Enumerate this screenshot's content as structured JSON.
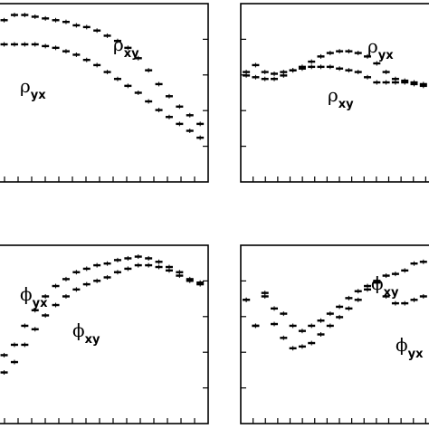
{
  "chart_data": [
    {
      "type": "scatter",
      "panel": "top-left",
      "ylim": [
        0,
        1
      ],
      "series": [
        {
          "name": "ρxy",
          "x": [
            0.02,
            0.07,
            0.12,
            0.17,
            0.22,
            0.27,
            0.32,
            0.37,
            0.42,
            0.47,
            0.52,
            0.57,
            0.62,
            0.67,
            0.72,
            0.77,
            0.82,
            0.87,
            0.92,
            0.97
          ],
          "y": [
            0.92,
            0.95,
            0.95,
            0.94,
            0.93,
            0.92,
            0.91,
            0.89,
            0.88,
            0.86,
            0.83,
            0.8,
            0.76,
            0.7,
            0.63,
            0.55,
            0.48,
            0.42,
            0.37,
            0.32
          ]
        },
        {
          "name": "ρyx",
          "x": [
            0.02,
            0.07,
            0.12,
            0.17,
            0.22,
            0.27,
            0.32,
            0.37,
            0.42,
            0.47,
            0.52,
            0.57,
            0.62,
            0.67,
            0.72,
            0.77,
            0.82,
            0.87,
            0.92,
            0.97
          ],
          "y": [
            0.78,
            0.78,
            0.78,
            0.78,
            0.77,
            0.76,
            0.74,
            0.72,
            0.69,
            0.66,
            0.62,
            0.58,
            0.54,
            0.5,
            0.45,
            0.4,
            0.36,
            0.32,
            0.28,
            0.24
          ]
        }
      ]
    },
    {
      "type": "scatter",
      "panel": "top-right",
      "ylim": [
        0,
        1
      ],
      "series": [
        {
          "name": "ρyx",
          "x": [
            0.02,
            0.07,
            0.12,
            0.17,
            0.22,
            0.27,
            0.32,
            0.37,
            0.42,
            0.47,
            0.52,
            0.57,
            0.62,
            0.67,
            0.72,
            0.77,
            0.82,
            0.87,
            0.92,
            0.97
          ],
          "y": [
            0.62,
            0.66,
            0.62,
            0.61,
            0.62,
            0.63,
            0.65,
            0.68,
            0.71,
            0.73,
            0.74,
            0.74,
            0.73,
            0.71,
            0.67,
            0.62,
            0.58,
            0.56,
            0.55,
            0.54
          ]
        },
        {
          "name": "ρxy",
          "x": [
            0.02,
            0.07,
            0.12,
            0.17,
            0.22,
            0.27,
            0.32,
            0.37,
            0.42,
            0.47,
            0.52,
            0.57,
            0.62,
            0.67,
            0.72,
            0.77,
            0.82,
            0.87,
            0.92,
            0.97
          ],
          "y": [
            0.6,
            0.59,
            0.58,
            0.58,
            0.6,
            0.63,
            0.64,
            0.65,
            0.65,
            0.65,
            0.64,
            0.63,
            0.62,
            0.59,
            0.56,
            0.56,
            0.56,
            0.57,
            0.56,
            0.55
          ]
        }
      ]
    },
    {
      "type": "scatter",
      "panel": "bottom-left",
      "ylim": [
        0,
        1
      ],
      "series": [
        {
          "name": "ϕyx",
          "x": [
            0.02,
            0.07,
            0.12,
            0.17,
            0.22,
            0.27,
            0.32,
            0.37,
            0.42,
            0.47,
            0.52,
            0.57,
            0.62,
            0.67,
            0.72,
            0.77,
            0.82,
            0.87,
            0.92,
            0.97
          ],
          "y": [
            0.38,
            0.44,
            0.55,
            0.64,
            0.72,
            0.78,
            0.82,
            0.86,
            0.88,
            0.9,
            0.91,
            0.93,
            0.94,
            0.95,
            0.94,
            0.92,
            0.89,
            0.86,
            0.82,
            0.8
          ]
        },
        {
          "name": "ϕxy",
          "x": [
            0.02,
            0.07,
            0.12,
            0.17,
            0.22,
            0.27,
            0.32,
            0.37,
            0.42,
            0.47,
            0.52,
            0.57,
            0.62,
            0.67,
            0.72,
            0.77,
            0.82,
            0.87,
            0.92,
            0.97
          ],
          "y": [
            0.28,
            0.34,
            0.44,
            0.53,
            0.61,
            0.67,
            0.72,
            0.76,
            0.79,
            0.81,
            0.83,
            0.86,
            0.88,
            0.9,
            0.9,
            0.89,
            0.87,
            0.84,
            0.81,
            0.79
          ]
        }
      ]
    },
    {
      "type": "scatter",
      "panel": "bottom-right",
      "ylim": [
        0,
        1
      ],
      "series": [
        {
          "name": "ϕxy",
          "x": [
            0.02,
            0.07,
            0.12,
            0.17,
            0.22,
            0.27,
            0.32,
            0.37,
            0.42,
            0.47,
            0.52,
            0.57,
            0.62,
            0.67,
            0.72,
            0.77,
            0.82,
            0.87,
            0.92,
            0.97
          ],
          "y": [
            0.7,
            0.55,
            0.74,
            0.65,
            0.62,
            0.55,
            0.52,
            0.55,
            0.58,
            0.62,
            0.66,
            0.71,
            0.75,
            0.78,
            0.81,
            0.84,
            0.85,
            0.87,
            0.91,
            0.92
          ]
        },
        {
          "name": "ϕyx",
          "x": [
            0.02,
            0.07,
            0.12,
            0.17,
            0.22,
            0.27,
            0.32,
            0.37,
            0.42,
            0.47,
            0.52,
            0.57,
            0.62,
            0.67,
            0.72,
            0.77,
            0.82,
            0.87,
            0.92,
            0.97
          ],
          "y": [
            0.7,
            0.55,
            0.72,
            0.56,
            0.48,
            0.42,
            0.43,
            0.45,
            0.5,
            0.55,
            0.6,
            0.65,
            0.7,
            0.76,
            0.8,
            0.72,
            0.68,
            0.68,
            0.7,
            0.72
          ]
        }
      ]
    }
  ]
}
